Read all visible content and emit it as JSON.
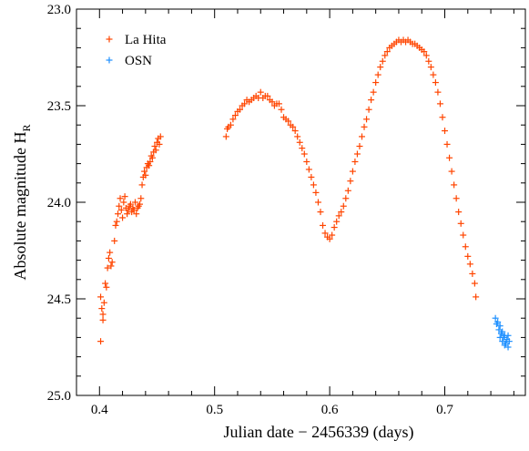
{
  "chart_data": {
    "type": "scatter",
    "marker": "plus",
    "xlabel": "Julian date − 2456339 (days)",
    "ylabel": {
      "text": "Absolute magnitude H",
      "subscript": "R"
    },
    "xlim": [
      0.38,
      0.77
    ],
    "ylim": [
      25.0,
      23.0
    ],
    "y_inverted": true,
    "x_ticks": [
      "0.4",
      "0.5",
      "0.6",
      "0.7"
    ],
    "y_ticks": [
      "23.0",
      "23.5",
      "24.0",
      "24.5",
      "25.0"
    ],
    "grid": false,
    "legend": {
      "position": "top-left"
    },
    "series": [
      {
        "name": "La Hita",
        "color": "#ff4500",
        "points": [
          [
            0.401,
            24.72
          ],
          [
            0.401,
            24.49
          ],
          [
            0.402,
            24.55
          ],
          [
            0.403,
            24.61
          ],
          [
            0.403,
            24.58
          ],
          [
            0.404,
            24.52
          ],
          [
            0.405,
            24.42
          ],
          [
            0.406,
            24.44
          ],
          [
            0.407,
            24.34
          ],
          [
            0.408,
            24.29
          ],
          [
            0.409,
            24.26
          ],
          [
            0.41,
            24.33
          ],
          [
            0.411,
            24.31
          ],
          [
            0.413,
            24.2
          ],
          [
            0.414,
            24.12
          ],
          [
            0.415,
            24.1
          ],
          [
            0.416,
            24.06
          ],
          [
            0.417,
            24.02
          ],
          [
            0.418,
            23.98
          ],
          [
            0.419,
            24.04
          ],
          [
            0.42,
            24.08
          ],
          [
            0.421,
            24.0
          ],
          [
            0.422,
            23.97
          ],
          [
            0.423,
            24.03
          ],
          [
            0.424,
            24.06
          ],
          [
            0.425,
            24.04
          ],
          [
            0.426,
            24.02
          ],
          [
            0.427,
            24.01
          ],
          [
            0.428,
            24.05
          ],
          [
            0.429,
            24.03
          ],
          [
            0.43,
            24.04
          ],
          [
            0.431,
            24.0
          ],
          [
            0.432,
            24.06
          ],
          [
            0.433,
            24.03
          ],
          [
            0.434,
            24.02
          ],
          [
            0.435,
            24.01
          ],
          [
            0.436,
            23.98
          ],
          [
            0.437,
            23.91
          ],
          [
            0.438,
            23.87
          ],
          [
            0.439,
            23.84
          ],
          [
            0.44,
            23.86
          ],
          [
            0.441,
            23.82
          ],
          [
            0.442,
            23.8
          ],
          [
            0.443,
            23.81
          ],
          [
            0.444,
            23.79
          ],
          [
            0.445,
            23.76
          ],
          [
            0.446,
            23.77
          ],
          [
            0.447,
            23.74
          ],
          [
            0.448,
            23.71
          ],
          [
            0.449,
            23.73
          ],
          [
            0.45,
            23.69
          ],
          [
            0.451,
            23.67
          ],
          [
            0.452,
            23.7
          ],
          [
            0.453,
            23.66
          ],
          [
            0.51,
            23.66
          ],
          [
            0.511,
            23.62
          ],
          [
            0.512,
            23.61
          ],
          [
            0.514,
            23.6
          ],
          [
            0.516,
            23.57
          ],
          [
            0.518,
            23.55
          ],
          [
            0.52,
            23.53
          ],
          [
            0.522,
            23.52
          ],
          [
            0.524,
            23.5
          ],
          [
            0.526,
            23.49
          ],
          [
            0.528,
            23.47
          ],
          [
            0.53,
            23.48
          ],
          [
            0.532,
            23.47
          ],
          [
            0.534,
            23.46
          ],
          [
            0.536,
            23.45
          ],
          [
            0.538,
            23.46
          ],
          [
            0.54,
            23.43
          ],
          [
            0.542,
            23.46
          ],
          [
            0.544,
            23.45
          ],
          [
            0.546,
            23.45
          ],
          [
            0.548,
            23.47
          ],
          [
            0.55,
            23.48
          ],
          [
            0.552,
            23.5
          ],
          [
            0.554,
            23.49
          ],
          [
            0.556,
            23.49
          ],
          [
            0.558,
            23.52
          ],
          [
            0.56,
            23.56
          ],
          [
            0.562,
            23.57
          ],
          [
            0.564,
            23.58
          ],
          [
            0.566,
            23.6
          ],
          [
            0.568,
            23.61
          ],
          [
            0.57,
            23.63
          ],
          [
            0.572,
            23.66
          ],
          [
            0.574,
            23.69
          ],
          [
            0.576,
            23.72
          ],
          [
            0.578,
            23.75
          ],
          [
            0.58,
            23.79
          ],
          [
            0.582,
            23.83
          ],
          [
            0.584,
            23.87
          ],
          [
            0.586,
            23.91
          ],
          [
            0.588,
            23.95
          ],
          [
            0.59,
            24.0
          ],
          [
            0.592,
            24.05
          ],
          [
            0.594,
            24.12
          ],
          [
            0.596,
            24.16
          ],
          [
            0.598,
            24.18
          ],
          [
            0.6,
            24.19
          ],
          [
            0.602,
            24.17
          ],
          [
            0.604,
            24.13
          ],
          [
            0.606,
            24.1
          ],
          [
            0.608,
            24.07
          ],
          [
            0.61,
            24.05
          ],
          [
            0.612,
            24.02
          ],
          [
            0.614,
            23.98
          ],
          [
            0.616,
            23.94
          ],
          [
            0.618,
            23.89
          ],
          [
            0.62,
            23.84
          ],
          [
            0.622,
            23.79
          ],
          [
            0.624,
            23.75
          ],
          [
            0.626,
            23.71
          ],
          [
            0.628,
            23.66
          ],
          [
            0.63,
            23.61
          ],
          [
            0.632,
            23.57
          ],
          [
            0.634,
            23.52
          ],
          [
            0.636,
            23.47
          ],
          [
            0.638,
            23.43
          ],
          [
            0.64,
            23.38
          ],
          [
            0.642,
            23.34
          ],
          [
            0.644,
            23.3
          ],
          [
            0.646,
            23.27
          ],
          [
            0.648,
            23.24
          ],
          [
            0.65,
            23.22
          ],
          [
            0.652,
            23.2
          ],
          [
            0.654,
            23.19
          ],
          [
            0.656,
            23.18
          ],
          [
            0.658,
            23.17
          ],
          [
            0.66,
            23.16
          ],
          [
            0.662,
            23.17
          ],
          [
            0.664,
            23.16
          ],
          [
            0.666,
            23.17
          ],
          [
            0.668,
            23.16
          ],
          [
            0.67,
            23.17
          ],
          [
            0.672,
            23.18
          ],
          [
            0.674,
            23.18
          ],
          [
            0.676,
            23.19
          ],
          [
            0.678,
            23.2
          ],
          [
            0.68,
            23.21
          ],
          [
            0.682,
            23.22
          ],
          [
            0.684,
            23.24
          ],
          [
            0.686,
            23.27
          ],
          [
            0.688,
            23.3
          ],
          [
            0.69,
            23.34
          ],
          [
            0.692,
            23.38
          ],
          [
            0.694,
            23.43
          ],
          [
            0.696,
            23.49
          ],
          [
            0.698,
            23.56
          ],
          [
            0.7,
            23.63
          ],
          [
            0.702,
            23.7
          ],
          [
            0.704,
            23.77
          ],
          [
            0.706,
            23.84
          ],
          [
            0.708,
            23.91
          ],
          [
            0.71,
            23.98
          ],
          [
            0.712,
            24.05
          ],
          [
            0.714,
            24.11
          ],
          [
            0.716,
            24.17
          ],
          [
            0.718,
            24.23
          ],
          [
            0.72,
            24.28
          ],
          [
            0.722,
            24.32
          ],
          [
            0.724,
            24.37
          ],
          [
            0.726,
            24.42
          ],
          [
            0.727,
            24.49
          ]
        ]
      },
      {
        "name": "OSN",
        "color": "#1e90ff",
        "points": [
          [
            0.744,
            24.6
          ],
          [
            0.745,
            24.63
          ],
          [
            0.746,
            24.62
          ],
          [
            0.747,
            24.66
          ],
          [
            0.748,
            24.64
          ],
          [
            0.748,
            24.7
          ],
          [
            0.749,
            24.68
          ],
          [
            0.75,
            24.72
          ],
          [
            0.75,
            24.67
          ],
          [
            0.751,
            24.7
          ],
          [
            0.752,
            24.74
          ],
          [
            0.752,
            24.69
          ],
          [
            0.753,
            24.73
          ],
          [
            0.754,
            24.71
          ],
          [
            0.755,
            24.75
          ],
          [
            0.755,
            24.69
          ],
          [
            0.756,
            24.72
          ]
        ]
      }
    ]
  }
}
